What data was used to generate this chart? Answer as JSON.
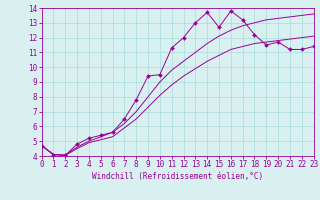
{
  "xlabel": "Windchill (Refroidissement éolien,°C)",
  "bg_color": "#d8f0f0",
  "line_color": "#990099",
  "grid_color": "#aadddd",
  "xlim": [
    0,
    23
  ],
  "ylim": [
    4,
    14
  ],
  "xticks": [
    0,
    1,
    2,
    3,
    4,
    5,
    6,
    7,
    8,
    9,
    10,
    11,
    12,
    13,
    14,
    15,
    16,
    17,
    18,
    19,
    20,
    21,
    22,
    23
  ],
  "yticks": [
    4,
    5,
    6,
    7,
    8,
    9,
    10,
    11,
    12,
    13,
    14
  ],
  "line1_x": [
    0,
    1,
    2,
    3,
    4,
    5,
    6,
    7,
    8,
    9,
    10,
    11,
    12,
    13,
    14,
    15,
    16,
    17,
    18,
    19,
    20,
    21,
    22,
    23
  ],
  "line1_y": [
    4.7,
    4.1,
    4.05,
    4.8,
    5.2,
    5.4,
    5.6,
    6.5,
    7.8,
    9.4,
    9.5,
    11.3,
    12.0,
    13.0,
    13.7,
    12.7,
    13.8,
    13.2,
    12.2,
    11.5,
    11.7,
    11.2,
    11.2,
    11.4
  ],
  "line2_x": [
    0,
    1,
    2,
    3,
    4,
    5,
    6,
    7,
    8,
    9,
    10,
    11,
    12,
    13,
    14,
    15,
    16,
    17,
    18,
    19,
    20,
    21,
    22,
    23
  ],
  "line2_y": [
    4.7,
    4.1,
    4.05,
    4.6,
    5.0,
    5.3,
    5.6,
    6.2,
    7.0,
    8.0,
    9.0,
    9.8,
    10.4,
    11.0,
    11.6,
    12.1,
    12.5,
    12.8,
    13.0,
    13.2,
    13.3,
    13.4,
    13.5,
    13.6
  ],
  "line3_x": [
    0,
    1,
    2,
    3,
    4,
    5,
    6,
    7,
    8,
    9,
    10,
    11,
    12,
    13,
    14,
    15,
    16,
    17,
    18,
    19,
    20,
    21,
    22,
    23
  ],
  "line3_y": [
    4.7,
    4.1,
    4.05,
    4.5,
    4.9,
    5.1,
    5.3,
    5.9,
    6.5,
    7.3,
    8.1,
    8.8,
    9.4,
    9.9,
    10.4,
    10.8,
    11.2,
    11.4,
    11.6,
    11.7,
    11.8,
    11.9,
    12.0,
    12.1
  ],
  "marker": "D",
  "markersize": 2.0,
  "linewidth": 0.7,
  "tick_fontsize": 5.5,
  "xlabel_fontsize": 5.5
}
